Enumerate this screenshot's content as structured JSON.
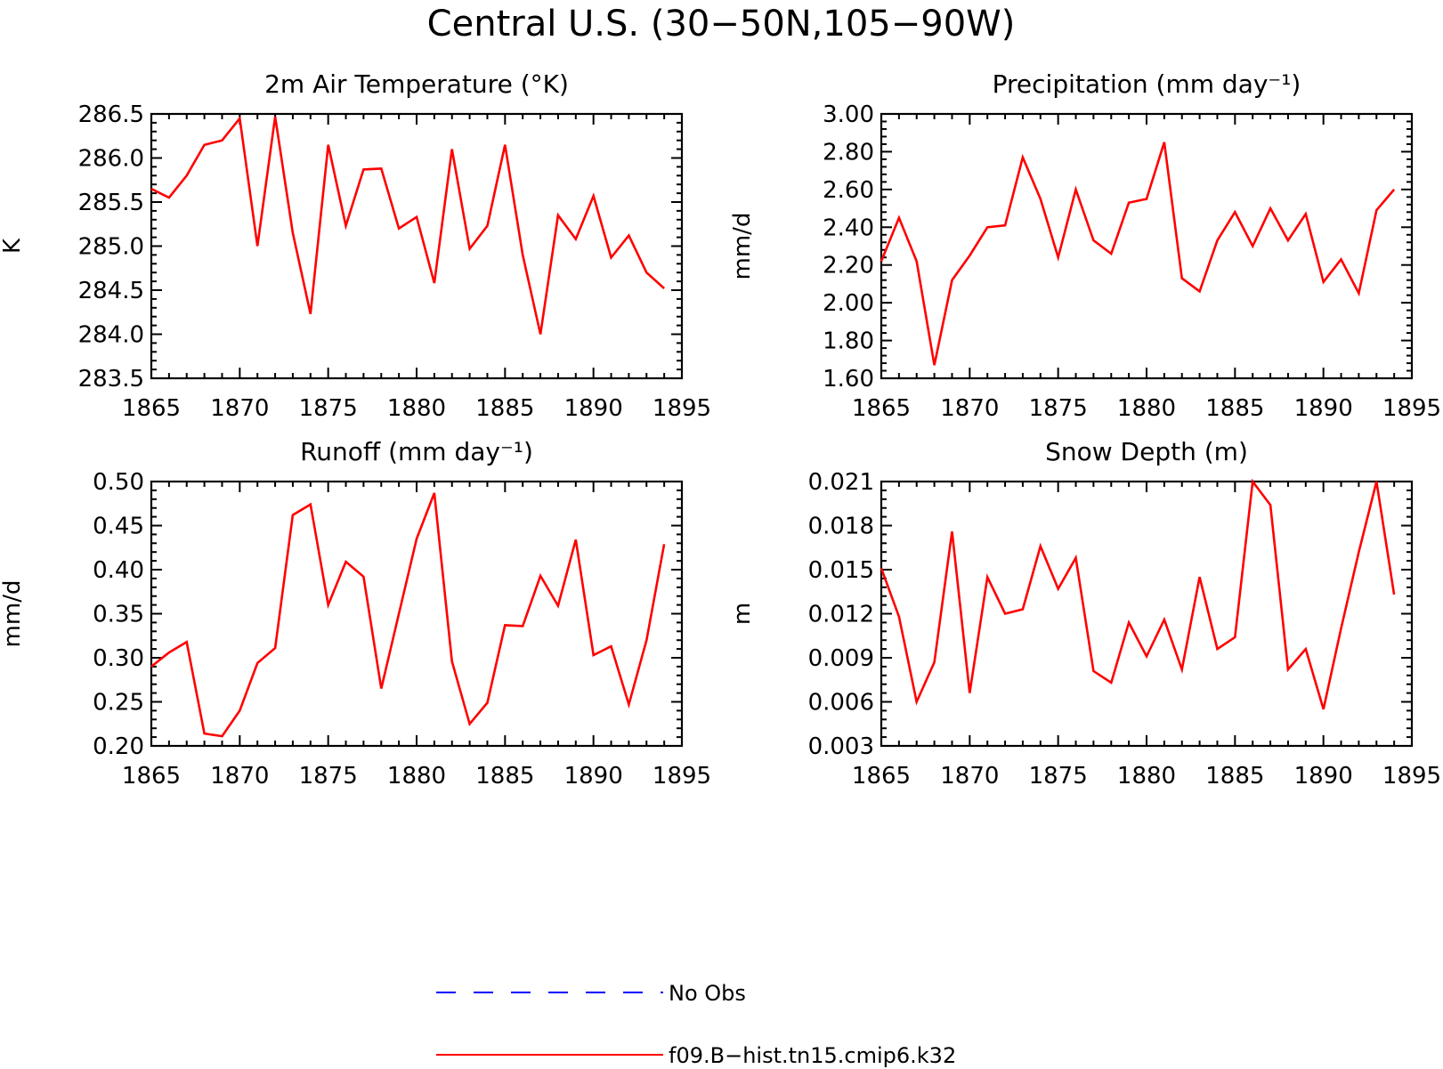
{
  "title": "Central U.S. (30−50N,105−90W)",
  "colors": {
    "model": "#ff0000",
    "obs": "#0000ff",
    "axis": "#000000"
  },
  "legend": [
    {
      "label": "No Obs",
      "color": "#0000ff",
      "style": "dashed"
    },
    {
      "label": "f09.B−hist.tn15.cmip6.k32",
      "color": "#ff0000",
      "style": "solid"
    }
  ],
  "chart_data": [
    {
      "type": "line",
      "title": "2m Air Temperature (°K)",
      "ylabel": "K",
      "xlim": [
        1865,
        1895
      ],
      "ylim": [
        283.5,
        286.5
      ],
      "xticks": [
        1865,
        1870,
        1875,
        1880,
        1885,
        1890,
        1895
      ],
      "yticks": [
        "283.5",
        "284.0",
        "284.5",
        "285.0",
        "285.5",
        "286.0",
        "286.5"
      ],
      "series": [
        {
          "color": "#ff0000",
          "x": [
            1865,
            1866,
            1867,
            1868,
            1869,
            1870,
            1871,
            1872,
            1873,
            1874,
            1875,
            1876,
            1877,
            1878,
            1879,
            1880,
            1881,
            1882,
            1883,
            1884,
            1885,
            1886,
            1887,
            1888,
            1889,
            1890,
            1891,
            1892,
            1893,
            1894
          ],
          "y": [
            285.65,
            285.55,
            285.8,
            286.15,
            286.2,
            286.45,
            285.0,
            286.47,
            285.15,
            284.23,
            286.15,
            285.23,
            285.87,
            285.88,
            285.2,
            285.33,
            284.58,
            286.1,
            284.97,
            285.23,
            286.15,
            284.9,
            284.0,
            285.35,
            285.08,
            285.57,
            284.87,
            285.12,
            284.7,
            284.52
          ]
        }
      ]
    },
    {
      "type": "line",
      "title": "Precipitation (mm day⁻¹)",
      "ylabel": "mm/d",
      "xlim": [
        1865,
        1895
      ],
      "ylim": [
        1.6,
        3.0
      ],
      "xticks": [
        1865,
        1870,
        1875,
        1880,
        1885,
        1890,
        1895
      ],
      "yticks": [
        "1.60",
        "1.80",
        "2.00",
        "2.20",
        "2.40",
        "2.60",
        "2.80",
        "3.00"
      ],
      "series": [
        {
          "color": "#ff0000",
          "x": [
            1865,
            1866,
            1867,
            1868,
            1869,
            1870,
            1871,
            1872,
            1873,
            1874,
            1875,
            1876,
            1877,
            1878,
            1879,
            1880,
            1881,
            1882,
            1883,
            1884,
            1885,
            1886,
            1887,
            1888,
            1889,
            1890,
            1891,
            1892,
            1893,
            1894
          ],
          "y": [
            2.22,
            2.45,
            2.22,
            1.67,
            2.12,
            2.25,
            2.4,
            2.41,
            2.77,
            2.55,
            2.24,
            2.6,
            2.33,
            2.26,
            2.53,
            2.55,
            2.85,
            2.13,
            2.06,
            2.33,
            2.48,
            2.3,
            2.5,
            2.33,
            2.47,
            2.11,
            2.23,
            2.05,
            2.49,
            2.6
          ]
        }
      ]
    },
    {
      "type": "line",
      "title": "Runoff (mm day⁻¹)",
      "ylabel": "mm/d",
      "xlim": [
        1865,
        1895
      ],
      "ylim": [
        0.2,
        0.5
      ],
      "xticks": [
        1865,
        1870,
        1875,
        1880,
        1885,
        1890,
        1895
      ],
      "yticks": [
        "0.20",
        "0.25",
        "0.30",
        "0.35",
        "0.40",
        "0.45",
        "0.50"
      ],
      "series": [
        {
          "color": "#ff0000",
          "x": [
            1865,
            1866,
            1867,
            1868,
            1869,
            1870,
            1871,
            1872,
            1873,
            1874,
            1875,
            1876,
            1877,
            1878,
            1879,
            1880,
            1881,
            1882,
            1883,
            1884,
            1885,
            1886,
            1887,
            1888,
            1889,
            1890,
            1891,
            1892,
            1893,
            1894
          ],
          "y": [
            0.29,
            0.306,
            0.318,
            0.214,
            0.211,
            0.24,
            0.294,
            0.311,
            0.462,
            0.474,
            0.36,
            0.409,
            0.392,
            0.265,
            0.35,
            0.435,
            0.487,
            0.296,
            0.225,
            0.249,
            0.337,
            0.336,
            0.393,
            0.359,
            0.434,
            0.303,
            0.313,
            0.247,
            0.32,
            0.429
          ]
        }
      ]
    },
    {
      "type": "line",
      "title": "Snow Depth (m)",
      "ylabel": "m",
      "xlim": [
        1865,
        1895
      ],
      "ylim": [
        0.003,
        0.021
      ],
      "xticks": [
        1865,
        1870,
        1875,
        1880,
        1885,
        1890,
        1895
      ],
      "yticks": [
        "0.003",
        "0.006",
        "0.009",
        "0.012",
        "0.015",
        "0.018",
        "0.021"
      ],
      "series": [
        {
          "color": "#ff0000",
          "x": [
            1865,
            1866,
            1867,
            1868,
            1869,
            1870,
            1871,
            1872,
            1873,
            1874,
            1875,
            1876,
            1877,
            1878,
            1879,
            1880,
            1881,
            1882,
            1883,
            1884,
            1885,
            1886,
            1887,
            1888,
            1889,
            1890,
            1891,
            1892,
            1893,
            1894
          ],
          "y": [
            0.0151,
            0.0118,
            0.006,
            0.0087,
            0.0176,
            0.0066,
            0.0145,
            0.012,
            0.0123,
            0.0166,
            0.0137,
            0.0158,
            0.0081,
            0.0073,
            0.0114,
            0.0091,
            0.0116,
            0.0082,
            0.0145,
            0.0096,
            0.0104,
            0.021,
            0.0194,
            0.0082,
            0.0096,
            0.0055,
            0.011,
            0.0162,
            0.021,
            0.0133
          ]
        }
      ]
    }
  ]
}
